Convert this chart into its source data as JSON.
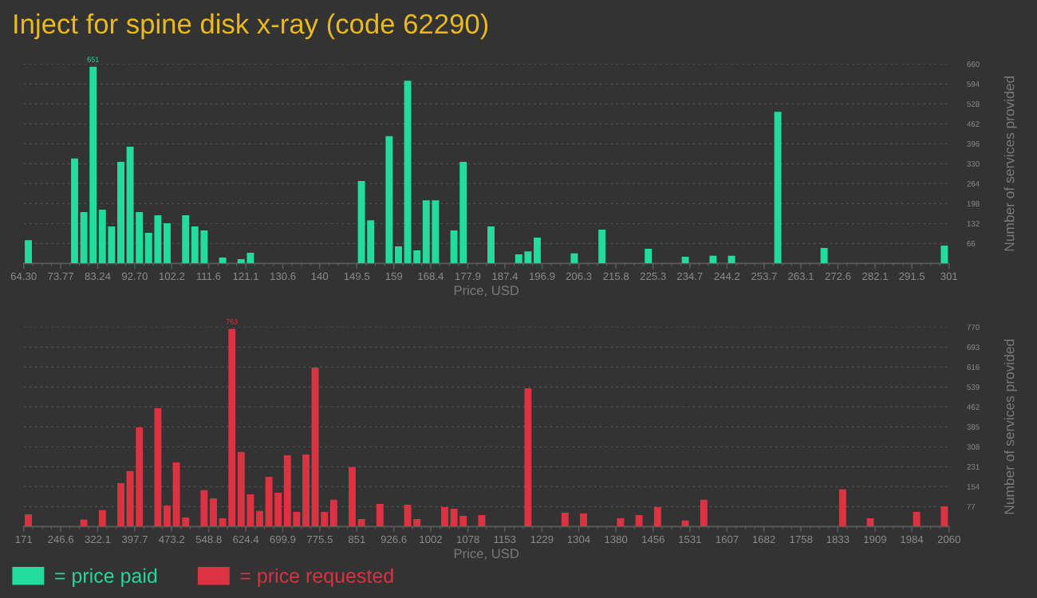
{
  "chart_data": [
    {
      "type": "histogram",
      "title": "Inject for spine disk x-ray (code 62290)",
      "xlabel": "Price, USD",
      "ylabel": "Number of services provided",
      "bins": [
        64.3,
        66.67,
        69.03,
        71.4,
        73.77,
        76.14,
        78.5,
        80.87,
        83.24,
        85.6,
        87.97,
        90.34,
        92.7,
        95.07,
        97.44,
        99.81,
        102.17,
        104.54,
        106.91,
        109.27,
        111.64,
        114.01,
        116.37,
        118.74,
        121.11,
        123.48,
        125.84,
        128.21,
        130.58,
        132.94,
        135.31,
        137.68,
        140.04,
        142.41,
        144.78,
        147.15,
        149.51,
        151.88,
        154.25,
        156.61,
        158.98,
        161.35,
        163.71,
        166.08,
        168.45,
        170.82,
        173.18,
        175.55,
        177.92,
        180.28,
        182.65,
        185.02,
        187.38,
        189.75,
        192.12,
        194.49,
        196.85,
        199.22,
        201.59,
        203.95,
        206.32,
        208.69,
        211.05,
        213.42,
        215.79,
        218.16,
        220.52,
        222.89,
        225.26,
        227.62,
        229.99,
        232.36,
        234.72,
        237.09,
        239.46,
        241.83,
        244.19,
        246.56,
        248.93,
        251.29,
        253.66,
        256.03,
        258.39,
        260.76,
        263.13,
        265.5,
        267.86,
        270.23,
        272.6,
        274.96,
        277.33,
        279.7,
        282.06,
        284.43,
        286.8,
        289.17,
        291.53,
        293.9,
        296.27,
        298.63,
        301
      ],
      "series": [
        {
          "name": "= price paid",
          "color": "#21dc9c",
          "values": [
            77,
            0,
            0,
            0,
            0,
            347,
            170,
            651,
            178,
            122,
            336,
            386,
            170,
            101,
            159,
            133,
            0,
            159,
            122,
            109,
            0,
            19,
            0,
            14,
            35,
            0,
            0,
            0,
            0,
            0,
            0,
            0,
            0,
            0,
            0,
            0,
            273,
            143,
            0,
            421,
            56,
            605,
            43,
            209,
            209,
            0,
            109,
            336,
            0,
            0,
            122,
            0,
            0,
            30,
            40,
            85,
            0,
            0,
            0,
            33,
            0,
            0,
            112,
            0,
            0,
            0,
            0,
            48,
            0,
            0,
            0,
            22,
            0,
            0,
            25,
            0,
            25,
            0,
            0,
            0,
            0,
            502,
            0,
            0,
            0,
            0,
            51,
            0,
            0,
            0,
            0,
            0,
            0,
            0,
            0,
            0,
            0,
            0,
            0,
            59
          ],
          "value_labels": [
            null,
            null,
            null,
            null,
            null,
            null,
            null,
            "651",
            null,
            null,
            null,
            null,
            null,
            null,
            null,
            null,
            null,
            null,
            null,
            null,
            null,
            null,
            null,
            null,
            null,
            null,
            null,
            null,
            null,
            null,
            null,
            null,
            null,
            null,
            null,
            null,
            null,
            null,
            null,
            null,
            null,
            null,
            null,
            null,
            null,
            null,
            null,
            null,
            null,
            null,
            null,
            null,
            null,
            null,
            null,
            null,
            null,
            null,
            null,
            null,
            null,
            null,
            null,
            null,
            null,
            null,
            null,
            null,
            null,
            null,
            null,
            null,
            null,
            null,
            null,
            null,
            null,
            null,
            null,
            null,
            null,
            null,
            null,
            null,
            null,
            null,
            null,
            null,
            null,
            null,
            null,
            null,
            null,
            null,
            null,
            null,
            null,
            null,
            null,
            null
          ]
        }
      ],
      "xlim": [
        64.3,
        301
      ],
      "xticks": [
        {
          "value": 64.3,
          "label": "64.30"
        },
        73.77,
        83.24,
        {
          "value": 92.7,
          "label": "92.70"
        },
        102.2,
        111.6,
        121.1,
        130.6,
        140,
        149.5,
        159,
        168.4,
        177.9,
        187.4,
        196.9,
        206.3,
        215.8,
        225.3,
        234.7,
        244.2,
        253.7,
        263.1,
        272.6,
        282.1,
        291.5,
        301
      ],
      "ylim": [
        0,
        660
      ],
      "yticks": [
        66,
        132,
        198,
        264,
        330,
        396,
        462,
        528,
        594,
        660
      ],
      "grid": "y",
      "legend": "bottom left"
    },
    {
      "type": "histogram",
      "xlabel": "Price, USD",
      "ylabel": "Number of services provided",
      "bins": [
        171,
        189.89,
        208.78,
        227.67,
        246.56,
        265.45,
        284.34,
        303.23,
        322.12,
        341.01,
        359.9,
        378.79,
        397.68,
        416.57,
        435.46,
        454.35,
        473.24,
        492.13,
        511.02,
        529.91,
        548.8,
        567.69,
        586.58,
        605.47,
        624.36,
        643.25,
        662.14,
        681.03,
        699.92,
        718.81,
        737.7,
        756.59,
        775.48,
        794.37,
        813.26,
        832.15,
        851.04,
        869.93,
        888.82,
        907.71,
        926.6,
        945.49,
        964.38,
        983.27,
        1002.16,
        1021.05,
        1039.94,
        1058.83,
        1077.72,
        1096.61,
        1115.5,
        1134.39,
        1153.28,
        1172.17,
        1191.06,
        1209.95,
        1228.84,
        1247.73,
        1266.62,
        1285.51,
        1304.4,
        1323.29,
        1342.18,
        1361.07,
        1379.96,
        1398.85,
        1417.74,
        1436.63,
        1455.52,
        1474.41,
        1493.3,
        1512.19,
        1531.08,
        1549.97,
        1568.86,
        1587.75,
        1606.64,
        1625.53,
        1644.42,
        1663.31,
        1682.2,
        1701.09,
        1719.98,
        1738.87,
        1757.76,
        1776.65,
        1795.54,
        1814.43,
        1833.32,
        1852.21,
        1871.1,
        1889.99,
        1908.88,
        1927.77,
        1946.66,
        1965.55,
        1984.44,
        2003.33,
        2022.22,
        2041.11,
        2060
      ],
      "series": [
        {
          "name": "= price requested",
          "color": "#dc3242",
          "values": [
            47,
            0,
            0,
            0,
            0,
            0,
            26,
            0,
            63,
            0,
            167,
            214,
            383,
            0,
            457,
            81,
            247,
            35,
            0,
            140,
            109,
            32,
            763,
            288,
            124,
            60,
            192,
            130,
            275,
            56,
            278,
            614,
            56,
            103,
            0,
            229,
            29,
            0,
            87,
            0,
            0,
            84,
            29,
            0,
            0,
            75,
            69,
            41,
            0,
            44,
            0,
            0,
            0,
            0,
            534,
            0,
            0,
            0,
            53,
            0,
            50,
            0,
            0,
            0,
            32,
            0,
            44,
            0,
            75,
            0,
            0,
            23,
            0,
            103,
            0,
            0,
            0,
            0,
            0,
            0,
            0,
            0,
            0,
            0,
            0,
            0,
            0,
            0,
            143,
            0,
            0,
            32,
            0,
            0,
            0,
            0,
            56,
            0,
            0,
            78
          ],
          "value_labels": [
            null,
            null,
            null,
            null,
            null,
            null,
            null,
            null,
            null,
            null,
            null,
            null,
            null,
            null,
            null,
            null,
            null,
            null,
            null,
            null,
            null,
            null,
            "763",
            null,
            null,
            null,
            null,
            null,
            null,
            null,
            null,
            null,
            null,
            null,
            null,
            null,
            null,
            null,
            null,
            null,
            null,
            null,
            null,
            null,
            null,
            null,
            null,
            null,
            null,
            null,
            null,
            null,
            null,
            null,
            null,
            null,
            null,
            null,
            null,
            null,
            null,
            null,
            null,
            null,
            null,
            null,
            null,
            null,
            null,
            null,
            null,
            null,
            null,
            null,
            null,
            null,
            null,
            null,
            null,
            null,
            null,
            null,
            null,
            null,
            null,
            null,
            null,
            null,
            null,
            null,
            null,
            null,
            null,
            null,
            null,
            null,
            null,
            null,
            null,
            null
          ]
        }
      ],
      "xlim": [
        171,
        2060
      ],
      "xticks": [
        171,
        246.6,
        322.1,
        397.7,
        473.2,
        548.8,
        624.4,
        699.9,
        775.5,
        851,
        926.6,
        1002,
        1078,
        1153,
        1229,
        1304,
        1380,
        1456,
        1531,
        1607,
        1682,
        1758,
        1833,
        1909,
        1984,
        2060
      ],
      "ylim": [
        0,
        770
      ],
      "yticks": [
        77,
        154,
        231,
        308,
        385,
        462,
        539,
        616,
        693,
        770
      ],
      "grid": "y",
      "legend": "bottom left"
    }
  ]
}
